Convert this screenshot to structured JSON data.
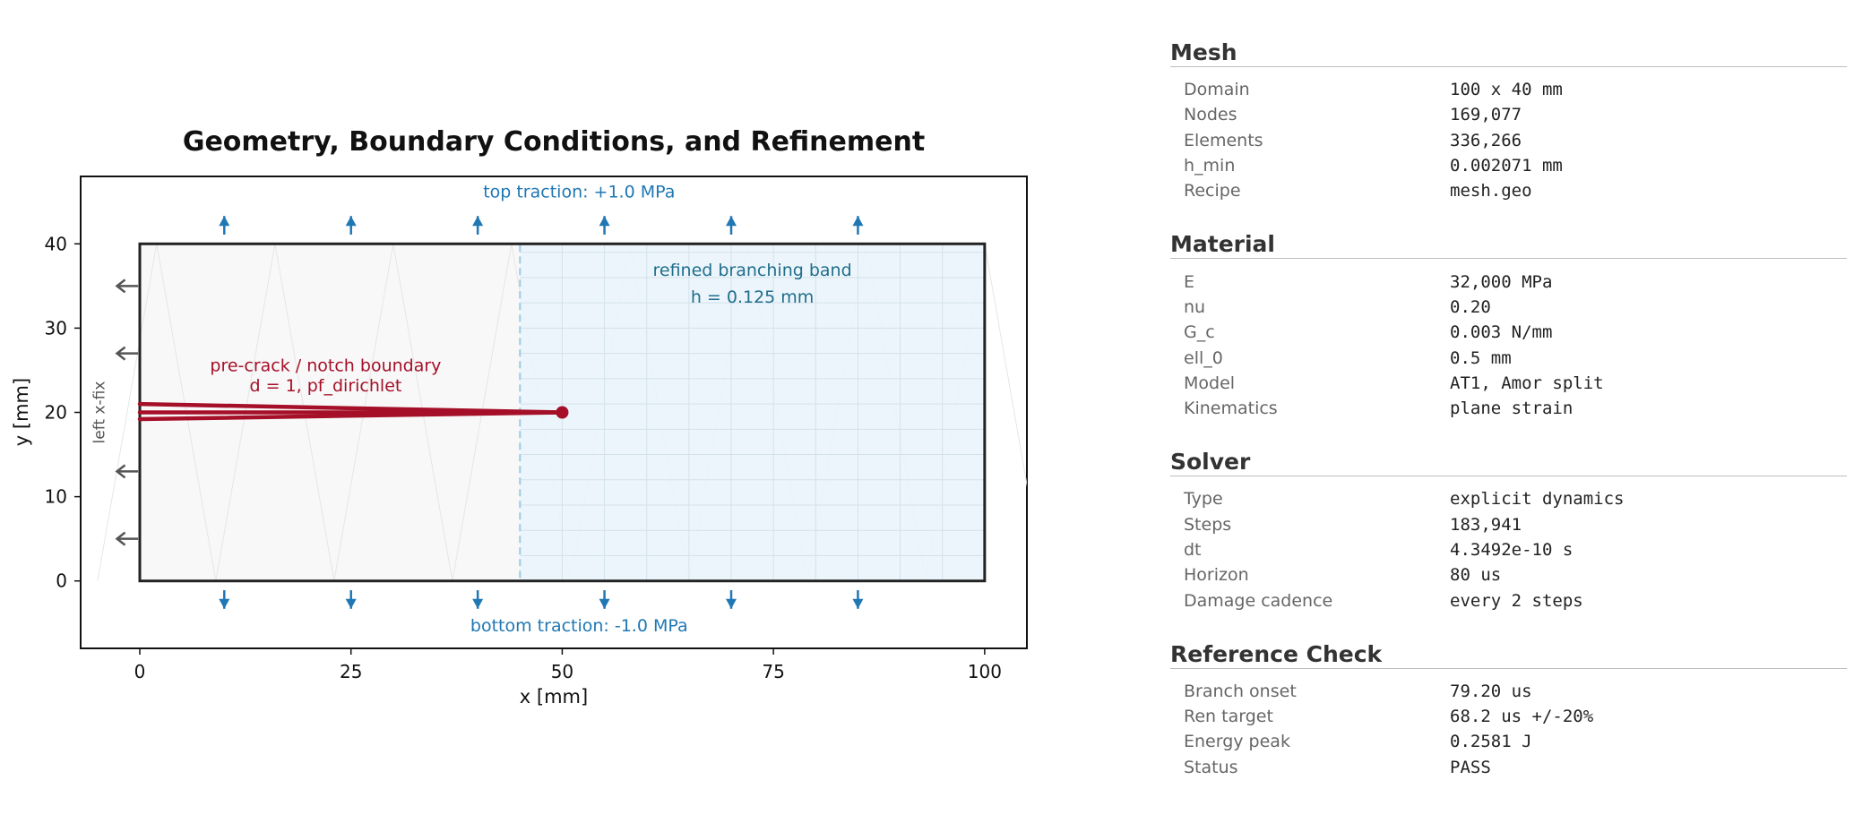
{
  "chart_data": {
    "type": "diagram",
    "title": "Geometry, Boundary Conditions, and Refinement",
    "xlabel": "x [mm]",
    "ylabel": "y [mm]",
    "xlim": [
      -7,
      105
    ],
    "ylim": [
      -8,
      48
    ],
    "xticks": [
      0,
      25,
      50,
      75,
      100
    ],
    "yticks": [
      0,
      10,
      20,
      30,
      40
    ],
    "domain": {
      "x": [
        0,
        100
      ],
      "y": [
        0,
        40
      ]
    },
    "refined_band": {
      "x": [
        45,
        100
      ],
      "y": [
        0,
        40
      ],
      "label_line1": "refined branching band",
      "label_line2": "h = 0.125 mm"
    },
    "crack": {
      "x": [
        0,
        50
      ],
      "y": 20,
      "label_line1": "pre-crack / notch boundary",
      "label_line2": "d = 1, pf_dirichlet"
    },
    "top_traction": {
      "label": "top traction: +1.0 MPa",
      "arrow_x": [
        10,
        25,
        40,
        55,
        70,
        85
      ]
    },
    "bottom_traction": {
      "label": "bottom traction: -1.0 MPa",
      "arrow_x": [
        10,
        25,
        40,
        55,
        70,
        85
      ]
    },
    "left_fix": {
      "label": "left x-fix",
      "arrow_y": [
        5,
        13,
        27,
        35
      ]
    },
    "colors": {
      "domain_edge": "#222222",
      "band_fill": "#eaf4fb",
      "band_edge": "#9ccbe0",
      "crack": "#a50f28",
      "traction": "#1f77b4",
      "fix": "#555555",
      "band_label": "#1f6e8c"
    }
  },
  "panel": {
    "sections": [
      {
        "title": "Mesh",
        "rows": [
          {
            "label": "Domain",
            "value": "100 x 40 mm"
          },
          {
            "label": "Nodes",
            "value": "169,077"
          },
          {
            "label": "Elements",
            "value": "336,266"
          },
          {
            "label": "h_min",
            "value": "0.002071 mm"
          },
          {
            "label": "Recipe",
            "value": "mesh.geo"
          }
        ]
      },
      {
        "title": "Material",
        "rows": [
          {
            "label": "E",
            "value": "32,000 MPa"
          },
          {
            "label": "nu",
            "value": "0.20"
          },
          {
            "label": "G_c",
            "value": "0.003 N/mm"
          },
          {
            "label": "ell_0",
            "value": "0.5 mm"
          },
          {
            "label": "Model",
            "value": "AT1, Amor split"
          },
          {
            "label": "Kinematics",
            "value": "plane strain"
          }
        ]
      },
      {
        "title": "Solver",
        "rows": [
          {
            "label": "Type",
            "value": "explicit dynamics"
          },
          {
            "label": "Steps",
            "value": "183,941"
          },
          {
            "label": "dt",
            "value": "4.3492e-10 s"
          },
          {
            "label": "Horizon",
            "value": "80 us"
          },
          {
            "label": "Damage cadence",
            "value": "every 2 steps"
          }
        ]
      },
      {
        "title": "Reference Check",
        "rows": [
          {
            "label": "Branch onset",
            "value": "79.20 us"
          },
          {
            "label": "Ren target",
            "value": "68.2 us +/-20%"
          },
          {
            "label": "Energy peak",
            "value": "0.2581 J"
          },
          {
            "label": "Status",
            "value": "PASS"
          }
        ]
      }
    ]
  }
}
